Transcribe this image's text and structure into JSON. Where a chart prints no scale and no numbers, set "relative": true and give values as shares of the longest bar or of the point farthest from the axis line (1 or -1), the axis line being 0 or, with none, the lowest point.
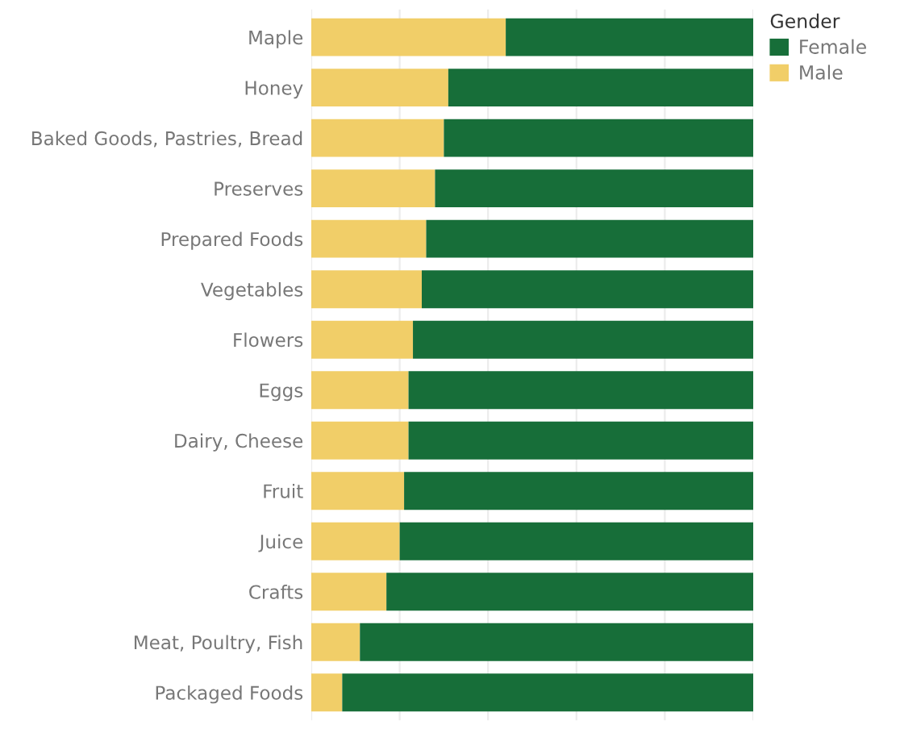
{
  "chart_data": {
    "type": "bar",
    "orientation": "horizontal",
    "stacked": true,
    "relative": true,
    "legend_title": "Gender",
    "legend": "right",
    "grid": "x",
    "categories": [
      "Maple",
      "Honey",
      "Baked Goods, Pastries, Bread",
      "Preserves",
      "Prepared Foods",
      "Vegetables",
      "Flowers",
      "Eggs",
      "Dairy, Cheese",
      "Fruit",
      "Juice",
      "Crafts",
      "Meat, Poultry, Fish",
      "Packaged Foods"
    ],
    "series": [
      {
        "name": "Male",
        "color": "#f1ce68",
        "values": [
          0.44,
          0.31,
          0.3,
          0.28,
          0.26,
          0.25,
          0.23,
          0.22,
          0.22,
          0.21,
          0.2,
          0.17,
          0.11,
          0.07
        ]
      },
      {
        "name": "Female",
        "color": "#176e39",
        "values": [
          0.56,
          0.69,
          0.7,
          0.72,
          0.74,
          0.75,
          0.77,
          0.78,
          0.78,
          0.79,
          0.8,
          0.83,
          0.89,
          0.93
        ]
      }
    ]
  }
}
